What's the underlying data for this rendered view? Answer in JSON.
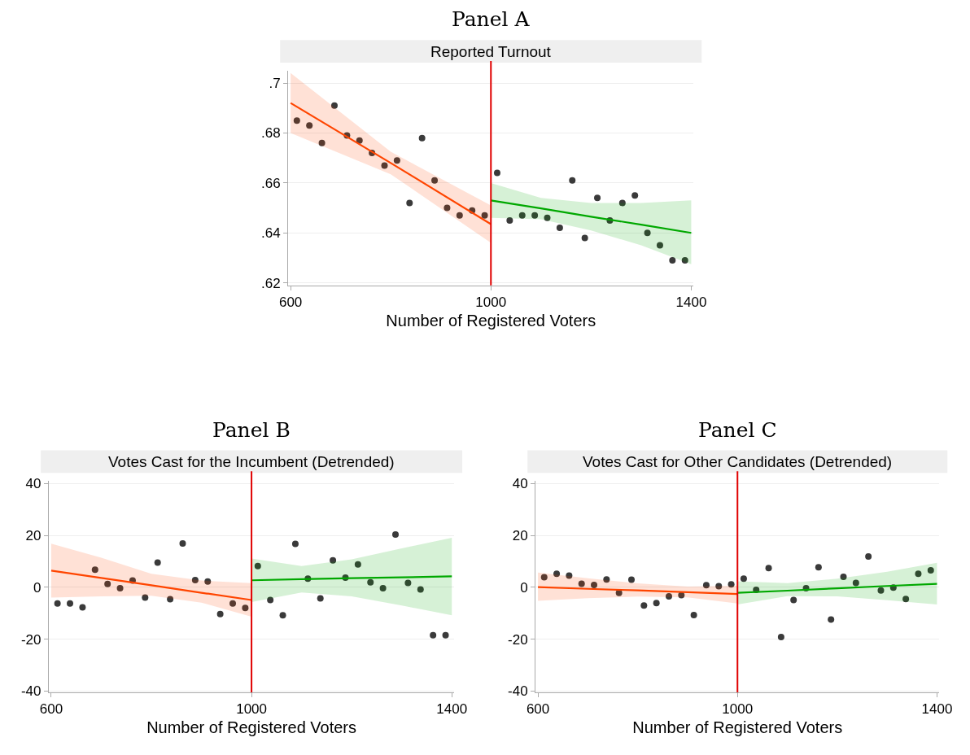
{
  "chart_data": [
    {
      "type": "scatter",
      "title": "Panel A",
      "subtitle": "Reported Turnout",
      "xlabel": "Number of Registered Voters",
      "xlim": [
        595,
        1405
      ],
      "xticks": [
        600,
        1000,
        1400
      ],
      "ylim": [
        0.619,
        0.705
      ],
      "yticks": [
        {
          "value": 0.62,
          "label": ".62"
        },
        {
          "value": 0.64,
          "label": ".64"
        },
        {
          "value": 0.66,
          "label": ".66"
        },
        {
          "value": 0.68,
          "label": ".68"
        },
        {
          "value": 0.7,
          "label": ".7"
        }
      ],
      "grid": "y",
      "marker": "circle",
      "x": [
        612.5,
        637.5,
        662.5,
        687.5,
        712.5,
        737.5,
        762.5,
        787.5,
        812.5,
        837.5,
        862.5,
        887.5,
        912.5,
        937.5,
        962.5,
        987.5,
        1012.5,
        1037.5,
        1062.5,
        1087.5,
        1112.5,
        1137.5,
        1162.5,
        1187.5,
        1212.5,
        1237.5,
        1262.5,
        1287.5,
        1312.5,
        1337.5,
        1362.5,
        1387.5
      ],
      "series": [
        {
          "color": "#3a3a3a",
          "values": [
            0.685,
            0.683,
            0.676,
            0.691,
            0.679,
            0.677,
            0.672,
            0.667,
            0.669,
            0.652,
            0.678,
            0.661,
            0.65,
            0.647,
            0.649,
            0.647,
            0.664,
            0.645,
            0.647,
            0.647,
            0.646,
            0.642,
            0.661,
            0.638,
            0.654,
            0.645,
            0.652,
            0.655,
            0.64,
            0.635,
            0.629,
            0.629
          ]
        },
        {
          "type": "line",
          "marker": "none",
          "color": "#ff4500",
          "x": [
            600,
            800,
            1000
          ],
          "values": [
            0.692,
            0.668,
            0.6435
          ],
          "lower": [
            0.68,
            0.6635,
            0.636
          ],
          "upper": [
            0.704,
            0.6725,
            0.651
          ]
        },
        {
          "type": "line",
          "marker": "none",
          "color": "#00a800",
          "x": [
            1000,
            1100,
            1200,
            1300,
            1400
          ],
          "values": [
            0.653,
            0.6498,
            0.6465,
            0.6433,
            0.64
          ],
          "lower": [
            0.646,
            0.6455,
            0.641,
            0.635,
            0.6275
          ],
          "upper": [
            0.66,
            0.654,
            0.652,
            0.652,
            0.653
          ]
        }
      ],
      "ref_lines": [
        {
          "axis": "x",
          "value": 1000,
          "color": "#e00000"
        }
      ]
    },
    {
      "type": "scatter",
      "title": "Panel B",
      "subtitle": "Votes Cast for the Incumbent (Detrended)",
      "xlabel": "Number of Registered Voters",
      "xlim": [
        595,
        1405
      ],
      "xticks": [
        600,
        1000,
        1400
      ],
      "ylim": [
        -40.5,
        41
      ],
      "yticks": [
        -40,
        -20,
        0,
        20,
        40
      ],
      "grid": "y",
      "marker": "circle",
      "x": [
        612.5,
        637.5,
        662.5,
        687.5,
        712.5,
        737.5,
        762.5,
        787.5,
        812.5,
        837.5,
        862.5,
        887.5,
        912.5,
        937.5,
        962.5,
        987.5,
        1012.5,
        1037.5,
        1062.5,
        1087.5,
        1112.5,
        1137.5,
        1162.5,
        1187.5,
        1212.5,
        1237.5,
        1262.5,
        1287.5,
        1312.5,
        1337.5,
        1362.5,
        1387.5
      ],
      "series": [
        {
          "color": "#3a3a3a",
          "values": [
            -6.2,
            -6.2,
            -7.7,
            6.8,
            1.3,
            -0.4,
            2.6,
            -4.0,
            9.5,
            -4.6,
            16.9,
            2.8,
            2.2,
            -10.3,
            -6.2,
            -8.0,
            8.2,
            -4.9,
            -10.8,
            16.7,
            3.3,
            -4.3,
            10.4,
            3.7,
            8.8,
            1.9,
            -0.4,
            20.3,
            1.7,
            -0.8,
            -18.5,
            -18.5
          ]
        },
        {
          "type": "line",
          "marker": "none",
          "color": "#ff4500",
          "x": [
            600,
            700,
            800,
            900,
            1000
          ],
          "values": [
            6.4,
            3.6,
            0.8,
            -2.1,
            -4.9
          ],
          "lower": [
            -4.0,
            -3.5,
            -3.3,
            -5.9,
            -11.3
          ],
          "upper": [
            16.8,
            11.4,
            5.2,
            2.6,
            1.6
          ]
        },
        {
          "type": "line",
          "marker": "none",
          "color": "#00a800",
          "x": [
            1000,
            1100,
            1200,
            1300,
            1400
          ],
          "values": [
            2.7,
            3.1,
            3.5,
            3.8,
            4.2
          ],
          "lower": [
            -5.7,
            -2.0,
            -3.5,
            -7.0,
            -10.8
          ],
          "upper": [
            11.1,
            8.2,
            10.8,
            15.0,
            19.1
          ]
        }
      ],
      "ref_lines": [
        {
          "axis": "x",
          "value": 1000,
          "color": "#e00000"
        }
      ]
    },
    {
      "type": "scatter",
      "title": "Panel C",
      "subtitle": "Votes Cast for Other Candidates (Detrended)",
      "xlabel": "Number of Registered Voters",
      "xlim": [
        595,
        1405
      ],
      "xticks": [
        600,
        1000,
        1400
      ],
      "ylim": [
        -40.5,
        41
      ],
      "yticks": [
        -40,
        -20,
        0,
        20,
        40
      ],
      "grid": "y",
      "marker": "circle",
      "x": [
        612.5,
        637.5,
        662.5,
        687.5,
        712.5,
        737.5,
        762.5,
        787.5,
        812.5,
        837.5,
        862.5,
        887.5,
        912.5,
        937.5,
        962.5,
        987.5,
        1012.5,
        1037.5,
        1062.5,
        1087.5,
        1112.5,
        1137.5,
        1162.5,
        1187.5,
        1212.5,
        1237.5,
        1262.5,
        1287.5,
        1312.5,
        1337.5,
        1362.5,
        1387.5
      ],
      "series": [
        {
          "color": "#3a3a3a",
          "values": [
            3.9,
            5.2,
            4.5,
            1.4,
            0.9,
            3.0,
            -2.2,
            2.9,
            -7.0,
            -6.1,
            -3.5,
            -3.0,
            -10.7,
            0.8,
            0.4,
            1.1,
            3.3,
            -1.0,
            7.4,
            -19.2,
            -4.9,
            -0.4,
            7.7,
            -12.4,
            4.0,
            1.7,
            11.9,
            -1.2,
            -0.1,
            -4.5,
            5.2,
            6.5
          ]
        },
        {
          "type": "line",
          "marker": "none",
          "color": "#ff4500",
          "x": [
            600,
            700,
            800,
            900,
            1000
          ],
          "values": [
            0.1,
            -0.6,
            -1.2,
            -1.9,
            -2.6
          ],
          "lower": [
            -5.2,
            -4.2,
            -3.6,
            -3.9,
            -6.2
          ],
          "upper": [
            5.7,
            3.5,
            1.5,
            0.3,
            0.6
          ]
        },
        {
          "type": "line",
          "marker": "none",
          "color": "#00a800",
          "x": [
            1000,
            1100,
            1200,
            1300,
            1400
          ],
          "values": [
            -2.1,
            -1.3,
            -0.4,
            0.5,
            1.3
          ],
          "lower": [
            -6.6,
            -3.4,
            -3.5,
            -5.0,
            -6.6
          ],
          "upper": [
            2.3,
            1.6,
            3.3,
            6.0,
            9.4
          ]
        }
      ],
      "ref_lines": [
        {
          "axis": "x",
          "value": 1000,
          "color": "#e00000"
        }
      ]
    }
  ]
}
